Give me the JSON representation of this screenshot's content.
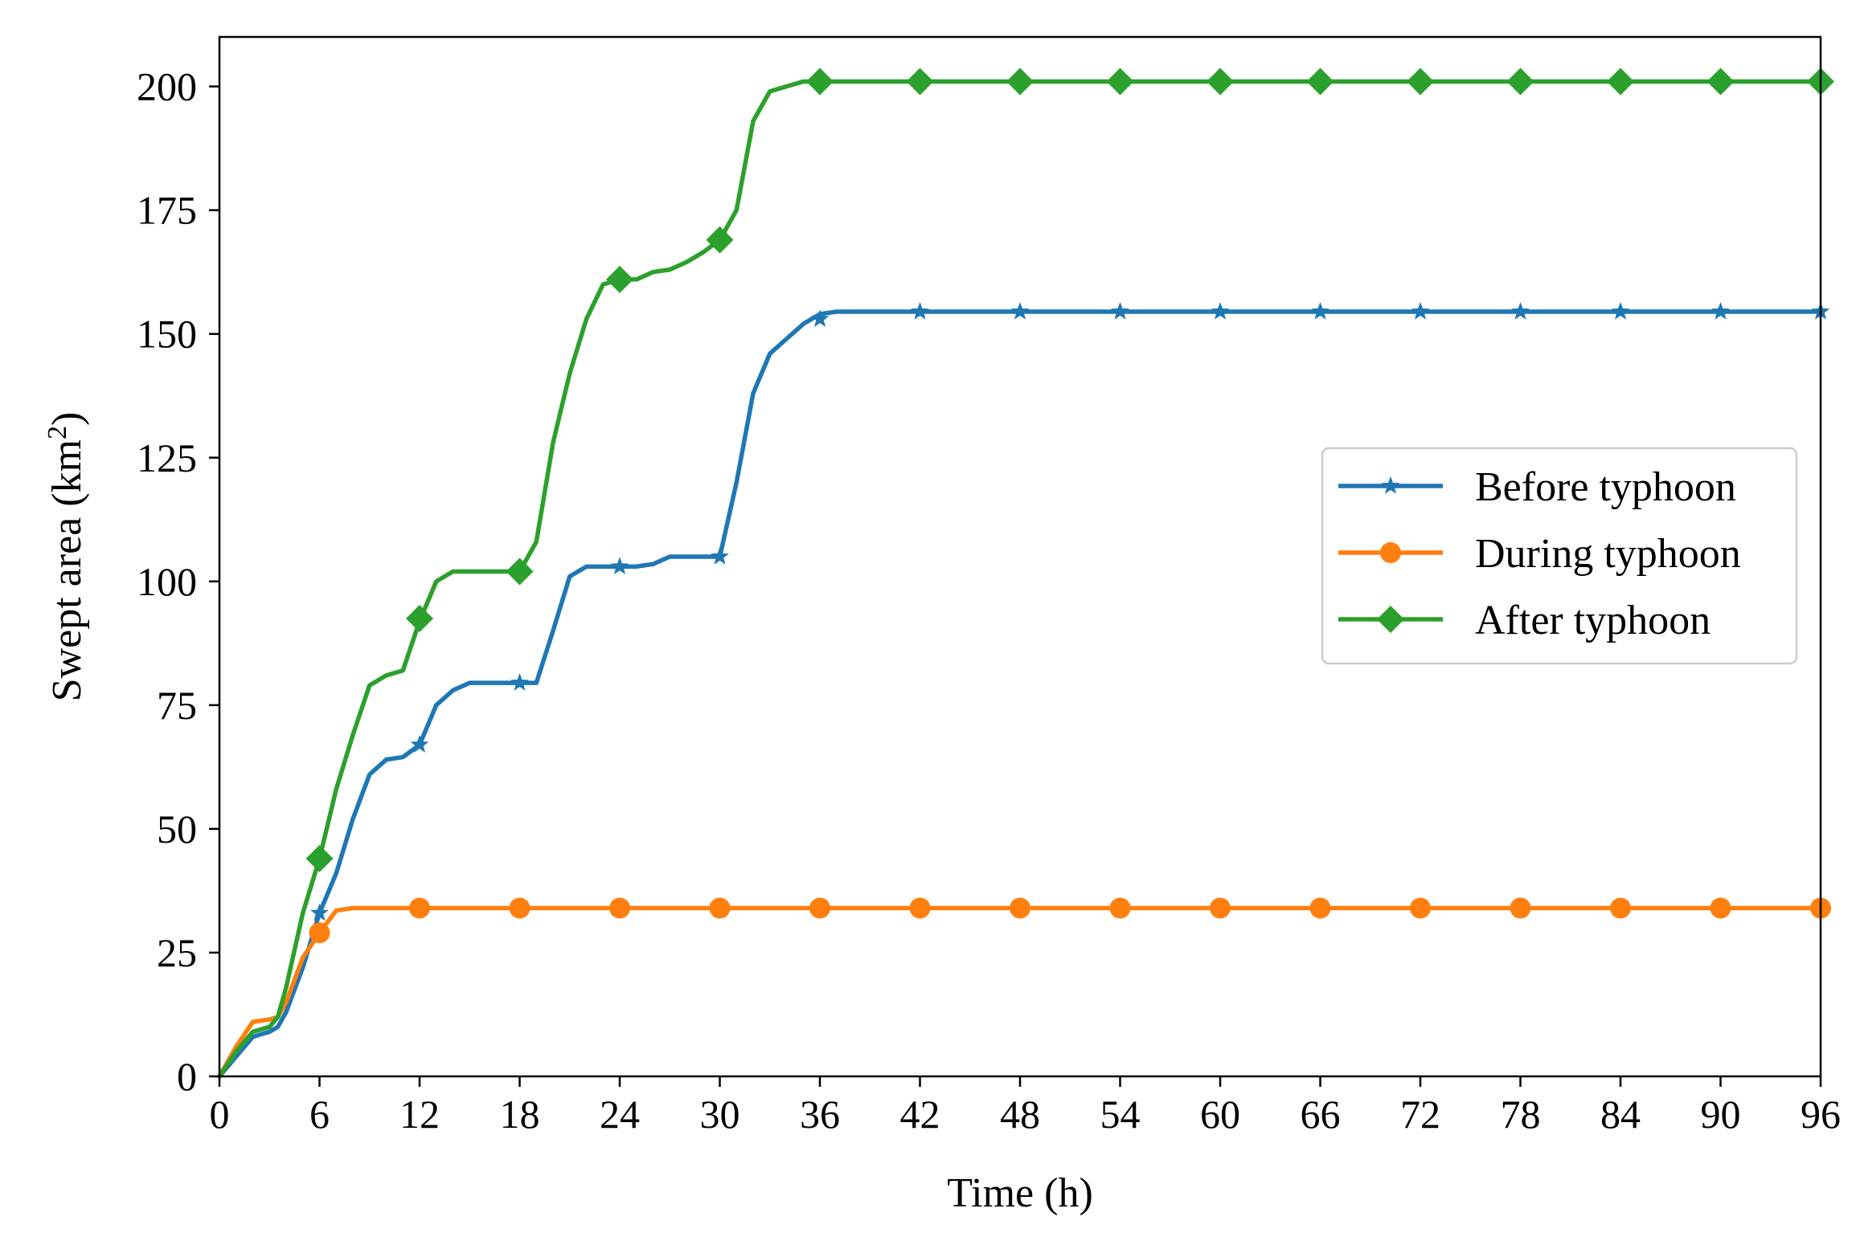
{
  "chart_data": {
    "type": "line",
    "title": "",
    "xlabel": "Time (h)",
    "ylabel_main": "Swept area (km",
    "ylabel_sup": "2",
    "ylabel_close": ")",
    "xlim": [
      0,
      96
    ],
    "ylim": [
      0,
      210
    ],
    "xticks": [
      0,
      6,
      12,
      18,
      24,
      30,
      36,
      42,
      48,
      54,
      60,
      66,
      72,
      78,
      84,
      90,
      96
    ],
    "yticks": [
      0,
      25,
      50,
      75,
      100,
      125,
      150,
      175,
      200
    ],
    "grid": false,
    "legend_position": "center-right",
    "series": [
      {
        "name": "Before typhoon",
        "color": "#1f77b4",
        "marker": "star",
        "line": [
          [
            0,
            0
          ],
          [
            1,
            4
          ],
          [
            2,
            8
          ],
          [
            3,
            9
          ],
          [
            3.5,
            10
          ],
          [
            4,
            13
          ],
          [
            5,
            22
          ],
          [
            6,
            33
          ],
          [
            7,
            41
          ],
          [
            8,
            52
          ],
          [
            9,
            61
          ],
          [
            10,
            64
          ],
          [
            11,
            64.5
          ],
          [
            12,
            67
          ],
          [
            13,
            75
          ],
          [
            14,
            78
          ],
          [
            15,
            79.5
          ],
          [
            16,
            79.5
          ],
          [
            17,
            79.5
          ],
          [
            18,
            79.5
          ],
          [
            19,
            79.5
          ],
          [
            20,
            90
          ],
          [
            21,
            101
          ],
          [
            22,
            103
          ],
          [
            23,
            103
          ],
          [
            24,
            103
          ],
          [
            25,
            103
          ],
          [
            26,
            103.5
          ],
          [
            27,
            105
          ],
          [
            28,
            105
          ],
          [
            29,
            105
          ],
          [
            30,
            105
          ],
          [
            31,
            120
          ],
          [
            32,
            138
          ],
          [
            33,
            146
          ],
          [
            34,
            149
          ],
          [
            35,
            152
          ],
          [
            36,
            154
          ],
          [
            37,
            154.5
          ],
          [
            96,
            154.5
          ]
        ],
        "markers": [
          [
            6,
            33
          ],
          [
            12,
            67
          ],
          [
            18,
            79.5
          ],
          [
            24,
            103
          ],
          [
            30,
            105
          ],
          [
            36,
            153
          ],
          [
            42,
            154.5
          ],
          [
            48,
            154.5
          ],
          [
            54,
            154.5
          ],
          [
            60,
            154.5
          ],
          [
            66,
            154.5
          ],
          [
            72,
            154.5
          ],
          [
            78,
            154.5
          ],
          [
            84,
            154.5
          ],
          [
            90,
            154.5
          ],
          [
            96,
            154.5
          ]
        ]
      },
      {
        "name": "During typhoon",
        "color": "#ff7f0e",
        "marker": "circle",
        "line": [
          [
            0,
            0
          ],
          [
            1,
            6
          ],
          [
            2,
            11
          ],
          [
            3,
            11.5
          ],
          [
            3.5,
            12
          ],
          [
            4,
            15
          ],
          [
            5,
            24
          ],
          [
            6,
            29
          ],
          [
            7,
            33.5
          ],
          [
            8,
            34
          ],
          [
            96,
            34
          ]
        ],
        "markers": [
          [
            6,
            29
          ],
          [
            12,
            34
          ],
          [
            18,
            34
          ],
          [
            24,
            34
          ],
          [
            30,
            34
          ],
          [
            36,
            34
          ],
          [
            42,
            34
          ],
          [
            48,
            34
          ],
          [
            54,
            34
          ],
          [
            60,
            34
          ],
          [
            66,
            34
          ],
          [
            72,
            34
          ],
          [
            78,
            34
          ],
          [
            84,
            34
          ],
          [
            90,
            34
          ],
          [
            96,
            34
          ]
        ]
      },
      {
        "name": "After typhoon",
        "color": "#2ca02c",
        "marker": "diamond",
        "line": [
          [
            0,
            0
          ],
          [
            1,
            5
          ],
          [
            2,
            9
          ],
          [
            3,
            10
          ],
          [
            3.5,
            12
          ],
          [
            4,
            18
          ],
          [
            5,
            33
          ],
          [
            6,
            44
          ],
          [
            7,
            58
          ],
          [
            8,
            69
          ],
          [
            9,
            79
          ],
          [
            10,
            81
          ],
          [
            11,
            82
          ],
          [
            12,
            92
          ],
          [
            13,
            100
          ],
          [
            14,
            102
          ],
          [
            15,
            102
          ],
          [
            16,
            102
          ],
          [
            17,
            102
          ],
          [
            18,
            102
          ],
          [
            19,
            108
          ],
          [
            20,
            128
          ],
          [
            21,
            142
          ],
          [
            22,
            153
          ],
          [
            23,
            160
          ],
          [
            24,
            161
          ],
          [
            25,
            161
          ],
          [
            26,
            162.5
          ],
          [
            27,
            163
          ],
          [
            28,
            164.5
          ],
          [
            29,
            166.5
          ],
          [
            30,
            169
          ],
          [
            31,
            175
          ],
          [
            32,
            193
          ],
          [
            33,
            199
          ],
          [
            34,
            200
          ],
          [
            35,
            201
          ],
          [
            36,
            201
          ],
          [
            96,
            201
          ]
        ],
        "markers": [
          [
            6,
            44
          ],
          [
            12,
            92.5
          ],
          [
            18,
            102
          ],
          [
            24,
            161
          ],
          [
            30,
            169
          ],
          [
            36,
            201
          ],
          [
            42,
            201
          ],
          [
            48,
            201
          ],
          [
            54,
            201
          ],
          [
            60,
            201
          ],
          [
            66,
            201
          ],
          [
            72,
            201
          ],
          [
            78,
            201
          ],
          [
            84,
            201
          ],
          [
            90,
            201
          ],
          [
            96,
            201
          ]
        ]
      }
    ]
  }
}
